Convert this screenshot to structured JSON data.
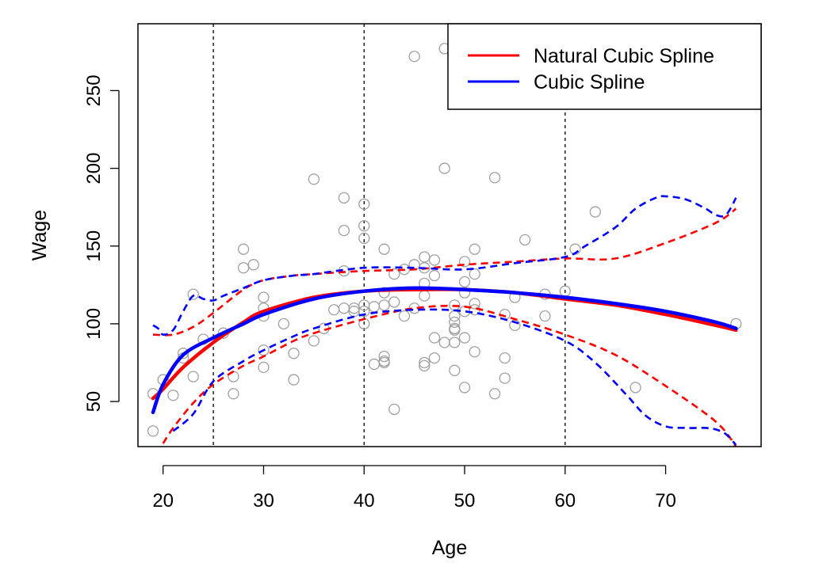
{
  "chart_data": {
    "type": "scatter",
    "xlabel": "Age",
    "ylabel": "Wage",
    "xlim": [
      17.5,
      79.5
    ],
    "ylim": [
      21,
      293
    ],
    "x_ticks": [
      20,
      30,
      40,
      50,
      60,
      70
    ],
    "y_ticks": [
      50,
      100,
      150,
      200,
      250
    ],
    "knots": [
      25,
      40,
      60
    ],
    "legend": {
      "position": "top-right",
      "entries": [
        {
          "label": "Natural Cubic Spline",
          "color": "#ff0000"
        },
        {
          "label": "Cubic Spline",
          "color": "#0000ff"
        }
      ]
    },
    "points": {
      "color": "#a0a0a0",
      "x": [
        19,
        19,
        20,
        21,
        22,
        22,
        23,
        23,
        24,
        26,
        27,
        27,
        28,
        28,
        29,
        30,
        30,
        30,
        30,
        30,
        32,
        33,
        33,
        35,
        35,
        36,
        37,
        38,
        38,
        38,
        38,
        39,
        39,
        40,
        40,
        40,
        40,
        40,
        40,
        41,
        41,
        42,
        42,
        42,
        42,
        42,
        42,
        43,
        43,
        43,
        44,
        44,
        45,
        45,
        45,
        46,
        46,
        46,
        46,
        46,
        46,
        47,
        47,
        47,
        47,
        48,
        48,
        48,
        49,
        49,
        49,
        49,
        49,
        49,
        49,
        50,
        50,
        50,
        50,
        50,
        50,
        51,
        51,
        51,
        51,
        51,
        53,
        53,
        54,
        54,
        54,
        55,
        55,
        56,
        58,
        58,
        60,
        61,
        63,
        67,
        77
      ],
      "y": [
        55,
        31,
        64,
        54,
        81,
        78,
        66,
        119,
        90,
        94,
        66,
        55,
        148,
        136,
        138,
        117,
        110,
        105,
        83,
        72,
        100,
        81,
        64,
        193,
        89,
        97,
        109,
        181,
        160,
        134,
        110,
        110,
        108,
        177,
        163,
        155,
        112,
        100,
        108,
        111,
        74,
        148,
        120,
        112,
        79,
        76,
        75,
        132,
        114,
        45,
        135,
        105,
        272,
        138,
        110,
        143,
        136,
        126,
        118,
        75,
        73,
        141,
        131,
        91,
        78,
        277,
        200,
        88,
        112,
        101,
        97,
        96,
        88,
        70,
        105,
        140,
        127,
        120,
        108,
        91,
        59,
        148,
        132,
        113,
        109,
        82,
        194,
        55,
        78,
        65,
        106,
        117,
        99,
        154,
        119,
        105,
        121,
        148,
        172,
        59,
        100
      ]
    },
    "series": [
      {
        "name": "Natural Cubic Spline",
        "role": "fit",
        "color": "#ff0000",
        "dashed": false,
        "x": [
          19,
          20,
          22,
          25,
          28,
          30,
          35,
          40,
          45,
          50,
          55,
          60,
          65,
          70,
          75,
          77
        ],
        "y": [
          52,
          58,
          72,
          88,
          101,
          108,
          117,
          121,
          122,
          122,
          120,
          116,
          112,
          106,
          99,
          96
        ]
      },
      {
        "name": "Cubic Spline",
        "role": "fit",
        "color": "#0000ff",
        "dashed": false,
        "x": [
          19,
          20,
          22,
          25,
          28,
          30,
          35,
          40,
          45,
          50,
          55,
          60,
          65,
          70,
          75,
          77
        ],
        "y": [
          43,
          61,
          80,
          91,
          100,
          106,
          116,
          121,
          123,
          122,
          120,
          117,
          113,
          108,
          101,
          97
        ]
      },
      {
        "role": "upper band",
        "color": "#ff0000",
        "dashed": true,
        "x": [
          19,
          21,
          23,
          25,
          28,
          30,
          33,
          35,
          40,
          45,
          50,
          55,
          60,
          65,
          70,
          75,
          77
        ],
        "y": [
          93,
          93,
          98,
          107,
          122,
          128,
          131,
          132,
          134,
          135,
          138,
          140,
          142,
          142,
          152,
          165,
          174
        ]
      },
      {
        "role": "lower band",
        "color": "#ff0000",
        "dashed": true,
        "x": [
          20,
          21,
          23,
          25,
          28,
          30,
          33,
          35,
          40,
          45,
          50,
          55,
          60,
          65,
          70,
          75,
          77
        ],
        "y": [
          23,
          33,
          49,
          61,
          73,
          79,
          89,
          94,
          103,
          110,
          111,
          103,
          93,
          80,
          60,
          37,
          21
        ]
      },
      {
        "role": "upper band",
        "color": "#0000ff",
        "dashed": true,
        "x": [
          19,
          19.5,
          20,
          21,
          22,
          23,
          24,
          25,
          26,
          28,
          30,
          33,
          35,
          40,
          45,
          50,
          55,
          60,
          62,
          65,
          67,
          69,
          70,
          72,
          74,
          75,
          76,
          77
        ],
        "y": [
          99,
          97,
          93,
          96,
          108,
          118,
          116,
          115,
          118,
          123,
          128,
          131,
          132,
          136,
          136,
          135,
          139,
          143,
          150,
          162,
          174,
          181,
          182,
          180,
          174,
          170,
          170,
          181
        ]
      },
      {
        "role": "lower band",
        "color": "#0000ff",
        "dashed": true,
        "x": [
          21,
          23,
          25,
          28,
          30,
          33,
          35,
          40,
          45,
          50,
          55,
          60,
          63,
          66,
          68,
          70,
          72,
          74,
          75,
          76,
          77
        ],
        "y": [
          31,
          42,
          63,
          76,
          83,
          92,
          97,
          106,
          109,
          108,
          101,
          89,
          75,
          55,
          41,
          34,
          33,
          33,
          32,
          29,
          22
        ]
      }
    ]
  }
}
